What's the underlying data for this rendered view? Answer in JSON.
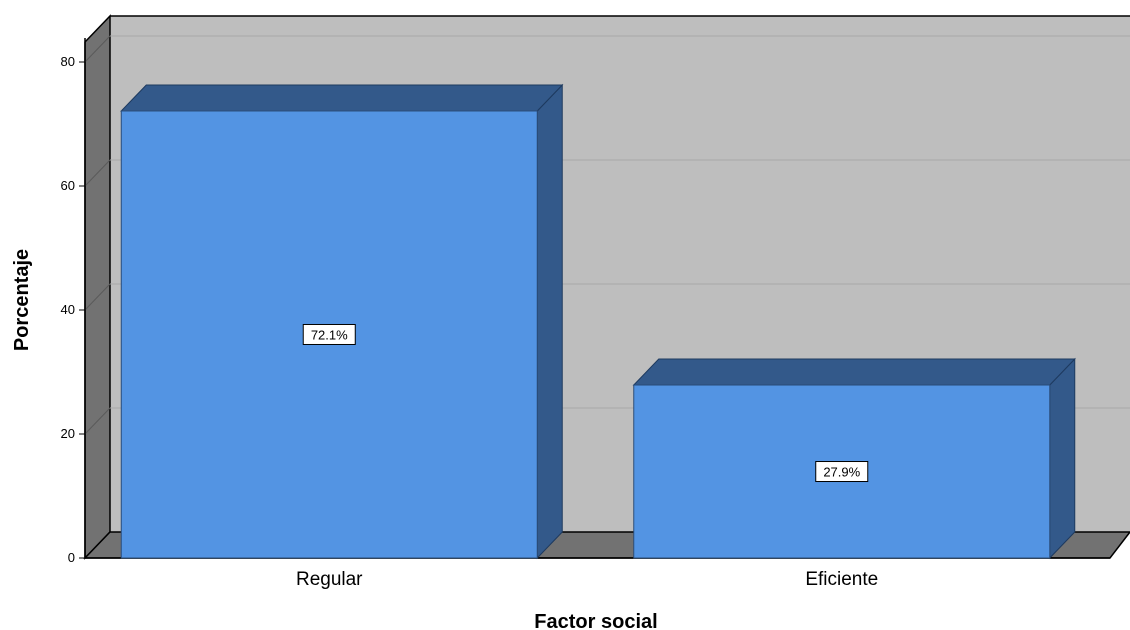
{
  "chart_data": {
    "type": "bar",
    "categories": [
      "Regular",
      "Eficiente"
    ],
    "values": [
      72.1,
      27.9
    ],
    "data_labels": [
      "72.1%",
      "27.9%"
    ],
    "xlabel": "Factor social",
    "ylabel": "Porcentaje",
    "ylim": [
      0,
      80
    ],
    "yticks": [
      "0",
      "20",
      "40",
      "60",
      "80"
    ],
    "grid": true,
    "style": "3d",
    "colors": {
      "bar_front": "#5394e3",
      "bar_top": "#33598a",
      "bar_side": "#33598a",
      "back_wall": "#bebebe",
      "left_wall": "#727272",
      "floor": "#727272",
      "gridline": "#a8a8a8"
    }
  }
}
